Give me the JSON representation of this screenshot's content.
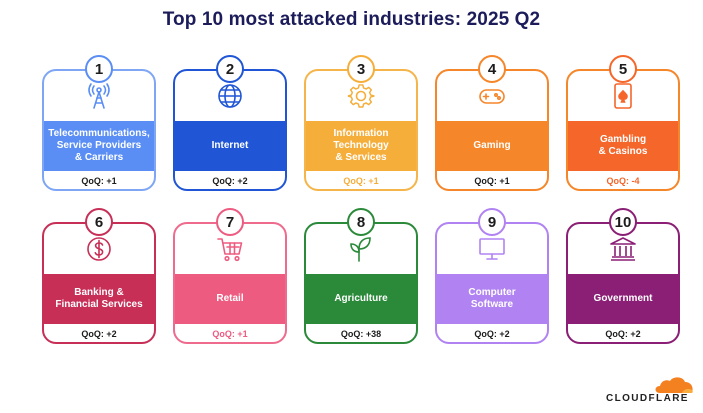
{
  "title": "Top 10 most attacked industries: 2025 Q2",
  "brand": "CLOUDFLARE",
  "industries": [
    {
      "rank": "1",
      "name": "Telecommunications,\nService Providers\n& Carriers",
      "qoq": "QoQ: +1",
      "icon": "cell-tower-icon",
      "color": "#5a8ef5",
      "light": "#7ea6f5"
    },
    {
      "rank": "2",
      "name": "Internet",
      "qoq": "QoQ: +2",
      "icon": "globe-icon",
      "color": "#2056d6",
      "light": "#2056d6"
    },
    {
      "rank": "3",
      "name": "Information\nTechnology\n& Services",
      "qoq": "QoQ: +1",
      "icon": "gear-icon",
      "color": "#f5ae3a",
      "light": "#f5b54a"
    },
    {
      "rank": "4",
      "name": "Gaming",
      "qoq": "QoQ: +1",
      "icon": "gamepad-icon",
      "color": "#f5862a",
      "light": "#f5862a"
    },
    {
      "rank": "5",
      "name": "Gambling\n& Casinos",
      "qoq": "QoQ: -4",
      "icon": "playing-card-icon",
      "color": "#f5662a",
      "light": "#f5862a"
    },
    {
      "rank": "6",
      "name": "Banking &\nFinancial Services",
      "qoq": "QoQ: +2",
      "icon": "dollar-icon",
      "color": "#c72f57",
      "light": "#c72f57"
    },
    {
      "rank": "7",
      "name": "Retail",
      "qoq": "QoQ: +1",
      "icon": "cart-icon",
      "color": "#ee5b80",
      "light": "#ee6b8e"
    },
    {
      "rank": "8",
      "name": "Agriculture",
      "qoq": "QoQ: +38",
      "icon": "sprout-icon",
      "color": "#2b8a3a",
      "light": "#2b8a3a"
    },
    {
      "rank": "9",
      "name": "Computer\nSoftware",
      "qoq": "QoQ: +2",
      "icon": "monitor-icon",
      "color": "#b183f2",
      "light": "#b183f2"
    },
    {
      "rank": "10",
      "name": "Government",
      "qoq": "QoQ: +2",
      "icon": "government-building-icon",
      "color": "#8a1f75",
      "light": "#8a1f75"
    }
  ]
}
